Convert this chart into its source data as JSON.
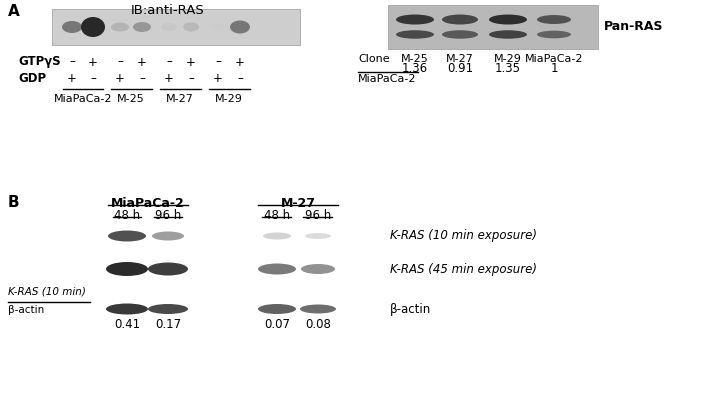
{
  "panel_A_title": "IB:anti-RAS",
  "panel_A_label": "A",
  "panel_B_label": "B",
  "gtpys_label": "GTPγS",
  "gdp_label": "GDP",
  "panel_A_left_samples": [
    "MiaPaCa-2",
    "M-25",
    "M-27",
    "M-29"
  ],
  "panel_A_left_signs_gtpys": [
    "–",
    "+",
    "–",
    "+",
    "–",
    "+",
    "–",
    "+"
  ],
  "panel_A_left_signs_gdp": [
    "+",
    "–",
    "+",
    "–",
    "+",
    "–",
    "+",
    "–"
  ],
  "panel_A_right_label": "Pan-RAS",
  "panel_A_right_samples": [
    "M-25",
    "M-27",
    "M-29",
    "MiaPaCa-2"
  ],
  "panel_A_right_values": [
    "1.36",
    "0.91",
    "1.35",
    "1"
  ],
  "panel_B_group1_label": "MiaPaCa-2",
  "panel_B_group2_label": "M-27",
  "panel_B_timepoints": [
    "48 h",
    "96 h",
    "48 h",
    "96 h"
  ],
  "panel_B_row1_label": "K-RAS (10 min exposure)",
  "panel_B_row2_label": "K-RAS (45 min exposure)",
  "panel_B_row3_label": "β-actin",
  "panel_B_ratio_line1": "K-RAS (10 min)",
  "panel_B_ratio_line2": "β-actin",
  "panel_B_ratio_values": [
    "0.41",
    "0.17",
    "0.07",
    "0.08"
  ],
  "bg_color": "#ffffff"
}
